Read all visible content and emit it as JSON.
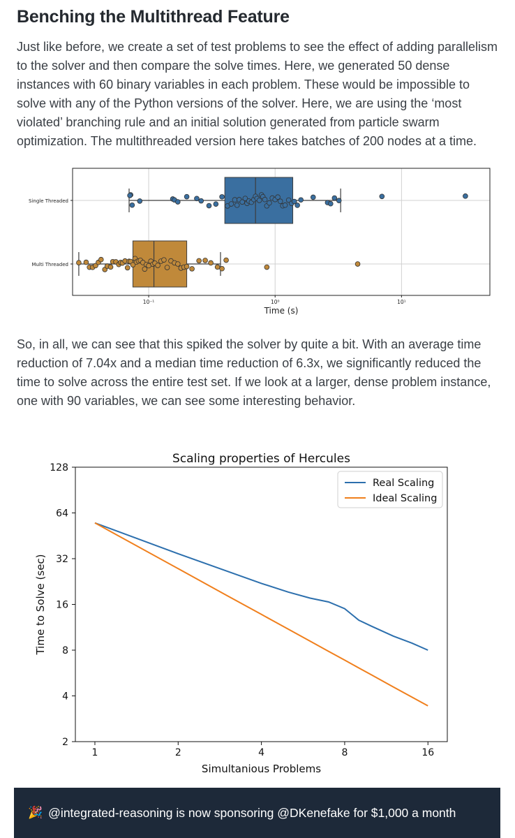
{
  "article": {
    "heading": "Benching the Multithread Feature",
    "paragraph1": "Just like before, we create a set of test problems to see the effect of adding parallelism to the solver and then compare the solve times. Here, we generated 50 dense instances with 60 binary variables in each problem. These would be impossible to solve with any of the Python versions of the solver. Here, we are using the ‘most violated’ branching rule and an initial solution generated from particle swarm optimization. The multithreaded version here takes batches of 200 nodes at a time.",
    "paragraph2": "So, in all, we can see that this spiked the solver by quite a bit. With an average time reduction of 7.04x and a median time reduction of 6.3x, we significantly reduced the time to solve across the entire test set. If we look at a larger, dense problem instance, one with 90 variables, we can see some interesting behavior."
  },
  "chart_data": [
    {
      "type": "box",
      "xlabel": "Time (s)",
      "xscale": "log",
      "xlim": [
        0.025,
        50
      ],
      "xticks": [
        {
          "value": 0.1,
          "label": "10⁻¹"
        },
        {
          "value": 1,
          "label": "10⁰"
        },
        {
          "value": 10,
          "label": "10¹"
        }
      ],
      "grid": true,
      "series": [
        {
          "name": "Single Threaded",
          "color": "#3a6fa0",
          "box": {
            "whisker_low": 0.07,
            "q1": 0.4,
            "median": 0.7,
            "q3": 1.38,
            "whisker_high": 3.3
          },
          "points": [
            0.072,
            0.074,
            0.071,
            0.085,
            0.155,
            0.16,
            0.17,
            0.2,
            0.24,
            0.26,
            0.3,
            0.34,
            0.38,
            0.42,
            0.45,
            0.48,
            0.5,
            0.52,
            0.55,
            0.58,
            0.6,
            0.62,
            0.65,
            0.68,
            0.7,
            0.72,
            0.75,
            0.78,
            0.8,
            0.83,
            0.86,
            0.9,
            0.95,
            1.0,
            1.05,
            1.1,
            1.15,
            1.2,
            1.28,
            1.35,
            1.42,
            1.5,
            1.6,
            2.0,
            2.6,
            2.75,
            2.95,
            3.2,
            7.0,
            32.0
          ]
        },
        {
          "name": "Multi Threaded",
          "color": "#c0893a",
          "box": {
            "whisker_low": 0.028,
            "q1": 0.075,
            "median": 0.11,
            "q3": 0.2,
            "whisker_high": 0.37
          },
          "points": [
            0.028,
            0.032,
            0.034,
            0.036,
            0.038,
            0.04,
            0.042,
            0.045,
            0.047,
            0.05,
            0.052,
            0.055,
            0.058,
            0.06,
            0.062,
            0.065,
            0.068,
            0.07,
            0.072,
            0.075,
            0.078,
            0.08,
            0.083,
            0.086,
            0.09,
            0.093,
            0.096,
            0.1,
            0.104,
            0.108,
            0.112,
            0.118,
            0.125,
            0.132,
            0.14,
            0.15,
            0.16,
            0.17,
            0.18,
            0.19,
            0.2,
            0.22,
            0.25,
            0.28,
            0.31,
            0.35,
            0.38,
            0.41,
            0.86,
            4.5
          ]
        }
      ]
    },
    {
      "type": "line",
      "title": "Scaling properties of Hercules",
      "xlabel": "Simultanious Problems",
      "ylabel": "Time to Solve (sec)",
      "xscale": "log2",
      "yscale": "log2",
      "xlim": [
        0.85,
        18.8
      ],
      "ylim": [
        2,
        128
      ],
      "xticks": [
        1,
        2,
        4,
        8,
        16
      ],
      "yticks": [
        2,
        4,
        8,
        16,
        32,
        64,
        128
      ],
      "legend_position": "top-right",
      "grid": false,
      "series": [
        {
          "name": "Real Scaling",
          "color": "#2c6fad",
          "x": [
            1,
            2,
            3,
            4,
            5,
            6,
            7,
            8,
            9,
            10,
            12,
            14,
            16
          ],
          "y": [
            55,
            34.5,
            26.5,
            22,
            19.3,
            17.6,
            16.6,
            15,
            12.6,
            11.5,
            9.9,
            8.9,
            8.0
          ]
        },
        {
          "name": "Ideal Scaling",
          "color": "#f07f1c",
          "x": [
            1,
            2,
            3,
            4,
            5,
            6,
            7,
            8,
            9,
            10,
            12,
            14,
            16
          ],
          "y": [
            55,
            27.5,
            18.33,
            13.75,
            11.0,
            9.17,
            7.86,
            6.88,
            6.11,
            5.5,
            4.58,
            3.93,
            3.44
          ]
        }
      ]
    }
  ],
  "banner": {
    "emoji": "🎉",
    "text": "@integrated-reasoning is now sponsoring @DKenefake for $1,000 a month"
  }
}
